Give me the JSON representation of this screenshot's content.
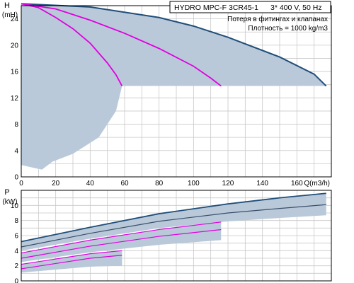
{
  "header": {
    "model": "HYDRO MPC-F 3CR45-1",
    "supply": "3* 400 V, 50 Hz",
    "note_losses": "Потеря в фитингах и клапанах",
    "note_density": "Плотность = 1000 kg/m3"
  },
  "colors": {
    "background": "#ffffff",
    "grid": "#c8c8c8",
    "area_fill": "#b9c9d9",
    "curve_max": "#1f4e79",
    "curve_mid": "#3a4e6a",
    "curve_reduced": "#e000e0",
    "axis": "#000000"
  },
  "chart_data": [
    {
      "type": "line",
      "name": "head",
      "ylabel": "H",
      "yunit": "(mH)",
      "xlabel_unit": "Q(m3/h)",
      "xlim": [
        0,
        180
      ],
      "ylim": [
        0,
        26
      ],
      "xticks": [
        0,
        20,
        40,
        60,
        80,
        100,
        120,
        140,
        160
      ],
      "yticks": [
        0,
        4,
        8,
        12,
        16,
        20,
        24
      ],
      "grid": true,
      "operating_area_upper": {
        "x": [
          0,
          40,
          80,
          100,
          120,
          150,
          170,
          177
        ],
        "y": [
          26.3,
          25.8,
          24.2,
          22.9,
          21.2,
          18.2,
          15.6,
          13.8
        ]
      },
      "operating_area_lower": {
        "x": [
          0,
          12,
          18,
          30,
          45,
          55,
          58.5
        ],
        "y": [
          1.8,
          1.1,
          2.3,
          3.5,
          6.0,
          10.0,
          13.8
        ]
      },
      "min_head_line": 13.8,
      "series": [
        {
          "role": "1 pump (max)",
          "x": [
            0,
            40,
            80,
            100,
            120,
            150,
            170,
            177
          ],
          "y": [
            26.3,
            25.8,
            24.2,
            22.9,
            21.2,
            18.2,
            15.6,
            13.8
          ]
        },
        {
          "role": "2 pumps reduced",
          "x": [
            0,
            20,
            40,
            60,
            80,
            100,
            110,
            116
          ],
          "y": [
            26.3,
            25.5,
            23.8,
            21.8,
            19.5,
            16.8,
            15.0,
            13.8
          ]
        },
        {
          "role": "1 pump reduced",
          "x": [
            0,
            10,
            20,
            30,
            40,
            50,
            55,
            58.5
          ],
          "y": [
            26.3,
            25.7,
            24.2,
            22.5,
            20.3,
            17.3,
            15.5,
            13.8
          ]
        }
      ]
    },
    {
      "type": "line",
      "name": "power",
      "ylabel": "P",
      "yunit": "(kW)",
      "xlim": [
        0,
        180
      ],
      "ylim": [
        0,
        12
      ],
      "xticks": [
        0,
        20,
        40,
        60,
        80,
        100,
        120,
        140,
        160
      ],
      "yticks": [
        0,
        2,
        4,
        6,
        8,
        10
      ],
      "grid": true,
      "series": [
        {
          "role": "P1 total",
          "x": [
            0,
            40,
            80,
            120,
            150,
            177
          ],
          "y": [
            5.2,
            7.1,
            8.9,
            10.2,
            11.0,
            11.6
          ]
        },
        {
          "role": "P2 total",
          "x": [
            0,
            40,
            80,
            120,
            150,
            177
          ],
          "y": [
            4.5,
            6.3,
            7.9,
            9.0,
            9.6,
            10.1
          ]
        },
        {
          "role": "P1 reduced 2 pumps",
          "x": [
            0,
            40,
            80,
            116
          ],
          "y": [
            3.7,
            5.4,
            6.8,
            7.8
          ]
        },
        {
          "role": "P2 reduced 2 pumps",
          "x": [
            0,
            40,
            80,
            116
          ],
          "y": [
            3.0,
            4.6,
            5.9,
            6.8
          ]
        },
        {
          "role": "P1 reduced 1 pump",
          "x": [
            0,
            20,
            40,
            58.5
          ],
          "y": [
            2.2,
            2.9,
            3.6,
            4.0
          ]
        },
        {
          "role": "P2 reduced 1 pump",
          "x": [
            0,
            20,
            40,
            58.5
          ],
          "y": [
            1.6,
            2.3,
            3.0,
            3.4
          ]
        }
      ]
    }
  ]
}
